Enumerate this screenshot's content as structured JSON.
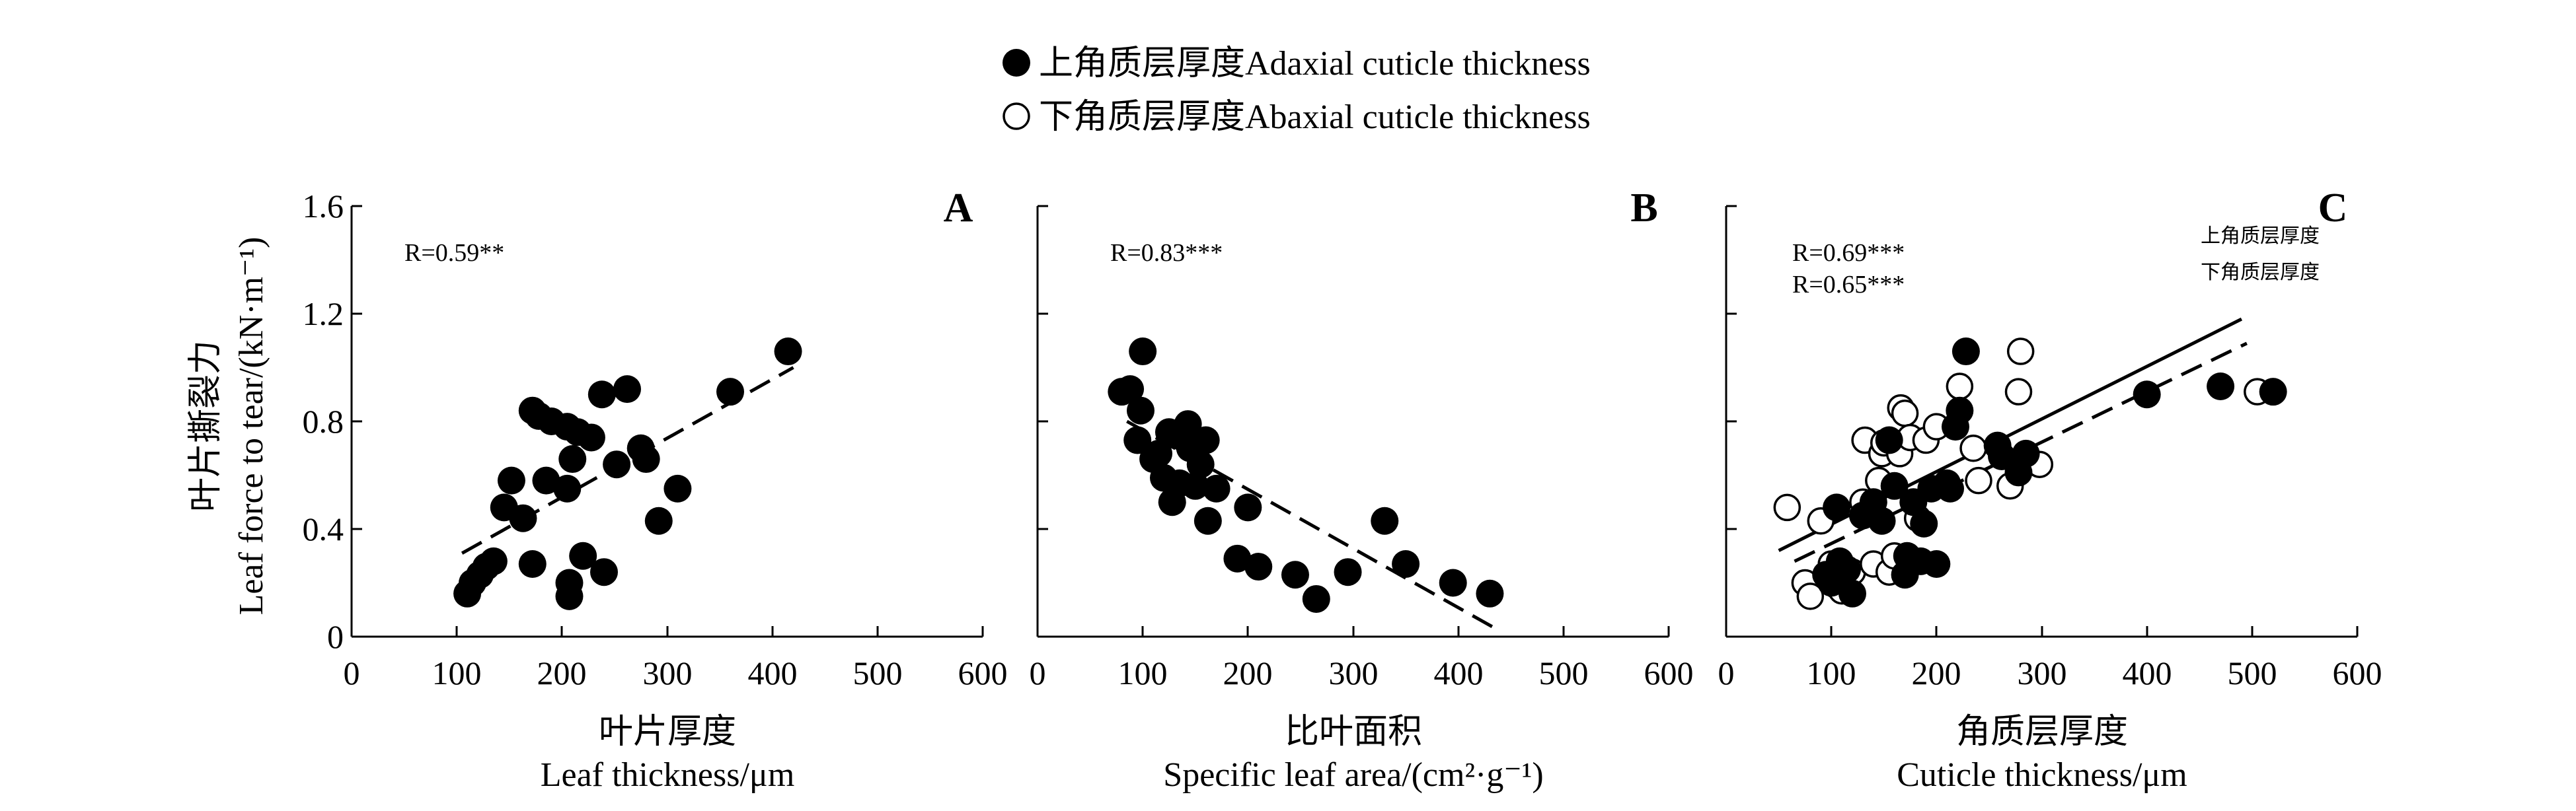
{
  "legend": {
    "filled_label": "上角质层厚度Adaxial cuticle thickness",
    "open_label": "下角质层厚度Abaxial cuticle thickness"
  },
  "y_axis": {
    "label_cn": "叶片撕裂力",
    "label_en": "Leaf force to tear/(kN·m⁻¹)",
    "ticks": [
      "0",
      "0.4",
      "0.8",
      "1.2",
      "1.6"
    ]
  },
  "chart_data": [
    {
      "type": "scatter",
      "panel": "A",
      "xlabel_cn": "叶片厚度",
      "xlabel_en": "Leaf thickness/μm",
      "xlim": [
        0,
        600
      ],
      "ylim": [
        0,
        1.6
      ],
      "xticks": [
        "0",
        "100",
        "200",
        "300",
        "400",
        "500",
        "600"
      ],
      "r_text": "R=0.59**",
      "fit_line": [
        [
          105,
          0.31
        ],
        [
          420,
          1.0
        ]
      ],
      "points": [
        [
          110,
          0.16
        ],
        [
          115,
          0.2
        ],
        [
          122,
          0.23
        ],
        [
          128,
          0.26
        ],
        [
          135,
          0.28
        ],
        [
          145,
          0.48
        ],
        [
          152,
          0.58
        ],
        [
          163,
          0.44
        ],
        [
          172,
          0.27
        ],
        [
          172,
          0.84
        ],
        [
          178,
          0.82
        ],
        [
          185,
          0.58
        ],
        [
          190,
          0.8
        ],
        [
          205,
          0.55
        ],
        [
          205,
          0.78
        ],
        [
          207,
          0.2
        ],
        [
          207,
          0.15
        ],
        [
          210,
          0.66
        ],
        [
          215,
          0.76
        ],
        [
          220,
          0.3
        ],
        [
          228,
          0.74
        ],
        [
          238,
          0.9
        ],
        [
          240,
          0.24
        ],
        [
          252,
          0.64
        ],
        [
          262,
          0.92
        ],
        [
          275,
          0.7
        ],
        [
          280,
          0.66
        ],
        [
          292,
          0.43
        ],
        [
          310,
          0.55
        ],
        [
          360,
          0.91
        ],
        [
          415,
          1.06
        ]
      ]
    },
    {
      "type": "scatter",
      "panel": "B",
      "xlabel_cn": "比叶面积",
      "xlabel_en": "Specific leaf area/(cm²·g⁻¹)",
      "xlim": [
        0,
        600
      ],
      "ylim": [
        0,
        1.6
      ],
      "xticks": [
        "0",
        "100",
        "200",
        "300",
        "400",
        "500",
        "600"
      ],
      "r_text": "R=0.83***",
      "fit_line": [
        [
          85,
          0.8
        ],
        [
          440,
          0.02
        ]
      ],
      "points": [
        [
          80,
          0.91
        ],
        [
          88,
          0.92
        ],
        [
          95,
          0.73
        ],
        [
          98,
          0.84
        ],
        [
          100,
          1.06
        ],
        [
          110,
          0.66
        ],
        [
          115,
          0.68
        ],
        [
          120,
          0.59
        ],
        [
          125,
          0.76
        ],
        [
          128,
          0.5
        ],
        [
          135,
          0.57
        ],
        [
          138,
          0.74
        ],
        [
          143,
          0.79
        ],
        [
          145,
          0.7
        ],
        [
          150,
          0.56
        ],
        [
          155,
          0.64
        ],
        [
          160,
          0.73
        ],
        [
          162,
          0.43
        ],
        [
          170,
          0.55
        ],
        [
          190,
          0.29
        ],
        [
          200,
          0.48
        ],
        [
          210,
          0.26
        ],
        [
          245,
          0.23
        ],
        [
          265,
          0.14
        ],
        [
          295,
          0.24
        ],
        [
          330,
          0.43
        ],
        [
          350,
          0.27
        ],
        [
          395,
          0.2
        ],
        [
          430,
          0.16
        ]
      ]
    },
    {
      "type": "scatter",
      "panel": "C",
      "xlabel_cn": "角质层厚度",
      "xlabel_en": "Cuticle thickness/μm",
      "xlim": [
        0,
        600
      ],
      "ylim": [
        0,
        1.6
      ],
      "xticks": [
        "0",
        "100",
        "200",
        "300",
        "400",
        "500",
        "600"
      ],
      "r_text_adaxial": "R=0.69***",
      "r_text_abaxial": "R=0.65***",
      "line_label_solid": "上角质层厚度",
      "line_label_dashed": "下角质层厚度",
      "series": [
        {
          "name": "上角质层厚度Adaxial cuticle thickness",
          "marker": "filled",
          "fit_line": [
            [
              50,
              0.32
            ],
            [
              490,
              1.18
            ]
          ],
          "points": [
            [
              95,
              0.23
            ],
            [
              100,
              0.2
            ],
            [
              105,
              0.48
            ],
            [
              108,
              0.28
            ],
            [
              115,
              0.25
            ],
            [
              120,
              0.16
            ],
            [
              130,
              0.45
            ],
            [
              140,
              0.5
            ],
            [
              148,
              0.43
            ],
            [
              155,
              0.73
            ],
            [
              160,
              0.56
            ],
            [
              170,
              0.23
            ],
            [
              172,
              0.3
            ],
            [
              178,
              0.5
            ],
            [
              185,
              0.28
            ],
            [
              188,
              0.42
            ],
            [
              195,
              0.55
            ],
            [
              200,
              0.27
            ],
            [
              210,
              0.57
            ],
            [
              213,
              0.55
            ],
            [
              218,
              0.78
            ],
            [
              222,
              0.84
            ],
            [
              228,
              1.06
            ],
            [
              258,
              0.71
            ],
            [
              262,
              0.67
            ],
            [
              278,
              0.61
            ],
            [
              285,
              0.68
            ],
            [
              400,
              0.9
            ],
            [
              470,
              0.93
            ],
            [
              520,
              0.91
            ]
          ]
        },
        {
          "name": "下角质层厚度Abaxial cuticle thickness",
          "marker": "open",
          "fit_line": [
            [
              65,
              0.28
            ],
            [
              495,
              1.09
            ]
          ],
          "points": [
            [
              58,
              0.48
            ],
            [
              75,
              0.2
            ],
            [
              80,
              0.15
            ],
            [
              90,
              0.43
            ],
            [
              95,
              0.23
            ],
            [
              100,
              0.27
            ],
            [
              105,
              0.19
            ],
            [
              110,
              0.17
            ],
            [
              120,
              0.24
            ],
            [
              130,
              0.5
            ],
            [
              132,
              0.73
            ],
            [
              140,
              0.27
            ],
            [
              145,
              0.58
            ],
            [
              148,
              0.68
            ],
            [
              150,
              0.72
            ],
            [
              155,
              0.24
            ],
            [
              160,
              0.3
            ],
            [
              165,
              0.68
            ],
            [
              166,
              0.85
            ],
            [
              170,
              0.83
            ],
            [
              175,
              0.74
            ],
            [
              182,
              0.44
            ],
            [
              190,
              0.73
            ],
            [
              200,
              0.78
            ],
            [
              222,
              0.93
            ],
            [
              235,
              0.7
            ],
            [
              240,
              0.58
            ],
            [
              270,
              0.56
            ],
            [
              278,
              0.91
            ],
            [
              280,
              1.06
            ],
            [
              298,
              0.64
            ],
            [
              505,
              0.91
            ]
          ]
        }
      ]
    }
  ]
}
